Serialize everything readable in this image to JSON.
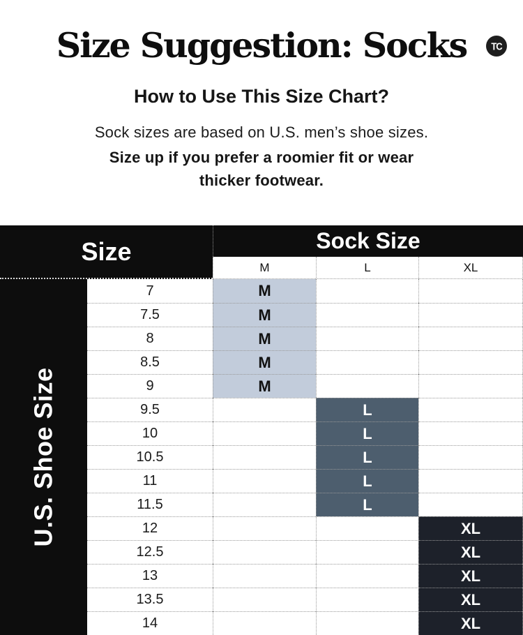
{
  "logo": {
    "text": "TC"
  },
  "header": {
    "title": "Size Suggestion: Socks",
    "subtitle": "How to Use This Size Chart?",
    "note_regular": "Sock sizes are based on U.S. men’s shoe sizes.",
    "note_bold": "Size up if you prefer a roomier fit or wear thicker footwear."
  },
  "table": {
    "corner_label": "Size",
    "group_header": "Sock Size",
    "size_columns": [
      "M",
      "L",
      "XL"
    ],
    "row_axis_label": "U.S. Shoe Size",
    "rows": [
      {
        "shoe_size": "7",
        "sock_size": "M"
      },
      {
        "shoe_size": "7.5",
        "sock_size": "M"
      },
      {
        "shoe_size": "8",
        "sock_size": "M"
      },
      {
        "shoe_size": "8.5",
        "sock_size": "M"
      },
      {
        "shoe_size": "9",
        "sock_size": "M"
      },
      {
        "shoe_size": "9.5",
        "sock_size": "L"
      },
      {
        "shoe_size": "10",
        "sock_size": "L"
      },
      {
        "shoe_size": "10.5",
        "sock_size": "L"
      },
      {
        "shoe_size": "11",
        "sock_size": "L"
      },
      {
        "shoe_size": "11.5",
        "sock_size": "L"
      },
      {
        "shoe_size": "12",
        "sock_size": "XL"
      },
      {
        "shoe_size": "12.5",
        "sock_size": "XL"
      },
      {
        "shoe_size": "13",
        "sock_size": "XL"
      },
      {
        "shoe_size": "13.5",
        "sock_size": "XL"
      },
      {
        "shoe_size": "14",
        "sock_size": "XL"
      }
    ]
  },
  "colors": {
    "header_black": "#0d0d0d",
    "grid_line": "#999999",
    "m_cell_bg": "#c2ccdb",
    "m_cell_text": "#111111",
    "l_cell_bg": "#4d5e6e",
    "l_cell_text": "#ffffff",
    "xl_cell_bg": "#1d212a",
    "xl_cell_text": "#ffffff"
  }
}
